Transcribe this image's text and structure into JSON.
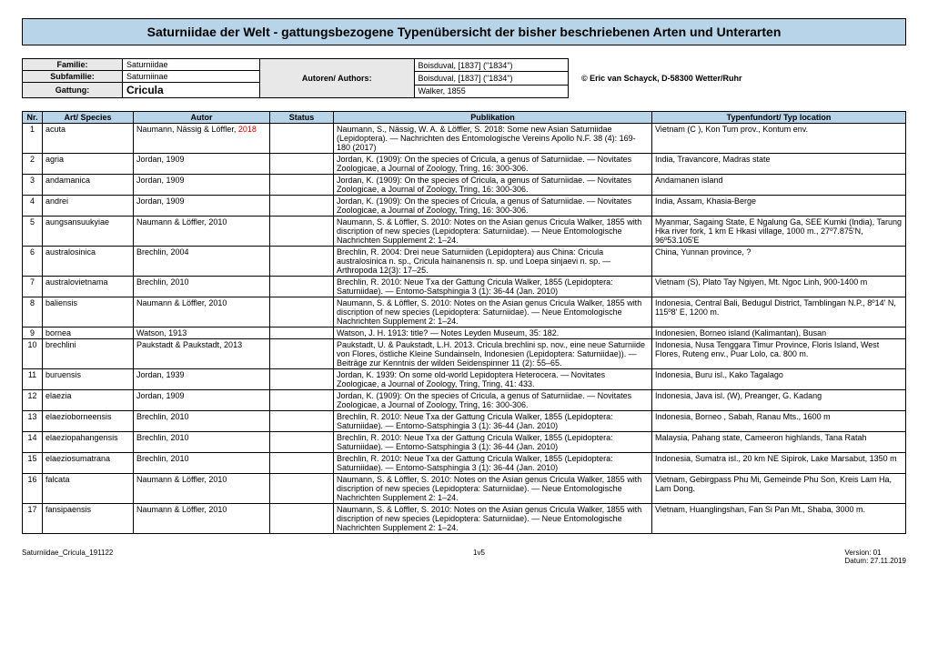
{
  "title": "Saturniidae der Welt - gattungsbezogene Typenübersicht der bisher beschriebenen Arten und Unterarten",
  "meta": {
    "familie_label": "Familie:",
    "familie_val": "Saturniidae",
    "subfamilie_label": "Subfamilie:",
    "subfamilie_val": "Saturniinae",
    "gattung_label": "Gattung:",
    "gattung_val": "Cricula",
    "autoren_label": "Autoren/ Authors:",
    "boisduval1": "Boisduval, [1837] (\"1834\")",
    "boisduval2": "Boisduval, [1837] (\"1834\")",
    "walker": "Walker, 1855",
    "copyright": "© Eric van Schayck, D-58300 Wetter/Ruhr"
  },
  "headers": {
    "nr": "Nr.",
    "species": "Art/ Species",
    "autor": "Autor",
    "status": "Status",
    "pub": "Publikation",
    "loc": "Typenfundort/ Typ location"
  },
  "rows": [
    {
      "nr": "1",
      "sp": "acuta",
      "au_pre": "Naumann, Nässig & Löffler, ",
      "au_red": "2018",
      "st": "",
      "pub": "Naumann, S., Nässig, W. A. & Löffler, S. 2018: Some new Asian Saturniidae (Lepidoptera). — Nachrichten des Entomologische Vereins Apollo N.F. 38 (4): 169-180 (2017)",
      "loc": "Vietnam (C ), Kon Tum prov., Kontum env."
    },
    {
      "nr": "2",
      "sp": "agria",
      "au": "Jordan, 1909",
      "st": "",
      "pub": "Jordan, K. (1909): On the species of Cricula, a genus of Saturniidae. — Novitates Zoologicae, a Journal of Zoology, Tring, 16: 300-306.",
      "loc": "India, Travancore, Madras state"
    },
    {
      "nr": "3",
      "sp": "andamanica",
      "au": "Jordan, 1909",
      "st": "",
      "pub": "Jordan, K. (1909): On the species of Cricula, a genus of Saturniidae. — Novitates Zoologicae, a Journal of Zoology, Tring, 16: 300-306.",
      "loc": "Andamanen island"
    },
    {
      "nr": "4",
      "sp": "andrei",
      "au": "Jordan, 1909",
      "st": "",
      "pub": "Jordan, K. (1909): On the species of Cricula, a genus of Saturniidae. — Novitates Zoologicae, a Journal of Zoology, Tring, 16: 300-306.",
      "loc": "India, Assam, Khasia-Berge"
    },
    {
      "nr": "5",
      "sp": "aungsansuukyiae",
      "au": "Naumann & Löffler, 2010",
      "st": "",
      "pub": "Naumann, S. & Löffler, S. 2010: Notes on the Asian genus Cricula Walker, 1855 with discription of new species (Lepidoptera: Saturniidae). — Neue Entomologische Nachrichten Supplement 2: 1–24.",
      "loc": "Myanmar, Sagaing State, E Ngalung Ga, SEE Kumki (India), Tarung Hka river fork, 1 km E Hkasi village, 1000 m., 27º7.875'N, 96º53.105'E"
    },
    {
      "nr": "6",
      "sp": "australosinica",
      "au": "Brechlin, 2004",
      "st": "",
      "pub": "Brechlin, R. 2004: Drei neue Saturniiden (Lepidoptera) aus China: Cricula australosinica n. sp., Cricula hainanensis n. sp. und Loepa sinjaevi n. sp. — Arthropoda 12(3): 17–25.",
      "loc": "China, Yunnan province, ?"
    },
    {
      "nr": "7",
      "sp": "australovietnama",
      "au": "Brechlin, 2010",
      "st": "",
      "pub": "Brechlin, R. 2010: Neue Txa der Gattung Cricula Walker, 1855 (Lepidoptera: Saturniidae). — Entomo-Satsphingia 3 (1): 36-44 (Jan. 2010)",
      "loc": "Vietnam (S), Plato Tay Ngiyen, Mt. Ngoc Linh, 900-1400 m"
    },
    {
      "nr": "8",
      "sp": "baliensis",
      "au": "Naumann & Löffler, 2010",
      "st": "",
      "pub": "Naumann, S. & Löffler, S. 2010: Notes on the Asian genus Cricula Walker, 1855 with discription of new species (Lepidoptera: Saturniidae). — Neue Entomologische Nachrichten Supplement 2: 1–24.",
      "loc": "Indonesia, Central Bali, Bedugul District, Tamblingan N.P., 8º14' N, 115º8' E, 1200 m."
    },
    {
      "nr": "9",
      "sp": "bornea",
      "au": "Watson, 1913",
      "st": "",
      "pub": "Watson, J. H. 1913: title? — Notes Leyden Museum, 35: 182.",
      "loc": "Indonesien, Borneo island (Kalimantan), Busan"
    },
    {
      "nr": "10",
      "sp": "brechlini",
      "au": "Paukstadt & Paukstadt, 2013",
      "st": "",
      "pub": "Paukstadt, U. & Paukstadt, L.H. 2013. Cricula brechlini sp. nov., eine neue Saturniide von Flores, östliche Kleine Sundainseln, Indonesien (Lepidoptera: Saturniidae)). — Beiträge zur Kenntnis der wilden Seidenspinner 11 (2): 55–65.",
      "loc": "Indonesia, Nusa Tenggara Timur Province, Floris Island, West Flores, Ruteng env., Puar Lolo, ca. 800 m."
    },
    {
      "nr": "11",
      "sp": "buruensis",
      "au": "Jordan, 1939",
      "st": "",
      "pub": "Jordan, K. 1939: On some old-world Lepidoptera Heterocera. — Novitates Zoologicae, a Journal of Zoology, Tring, Tring, 41: 433.",
      "loc": "Indonesia, Buru isl., Kako Tagalago"
    },
    {
      "nr": "12",
      "sp": "elaezia",
      "au": "Jordan, 1909",
      "st": "",
      "pub": "Jordan, K. (1909): On the species of Cricula, a genus of Saturniidae. — Novitates Zoologicae, a Journal of Zoology, Tring, 16: 300-306.",
      "loc": "Indonesia, Java isl. (W), Preanger, G. Kadang"
    },
    {
      "nr": "13",
      "sp": "elaezioborneensis",
      "au": "Brechlin, 2010",
      "st": "",
      "pub": "Brechlin, R. 2010: Neue Txa der Gattung Cricula Walker, 1855 (Lepidoptera: Saturniidae). — Entomo-Satsphingia 3 (1): 36-44 (Jan. 2010)",
      "loc": "Indonesia, Borneo , Sabah, Ranau Mts., 1600 m"
    },
    {
      "nr": "14",
      "sp": "elaeziopahangensis",
      "au": "Brechlin, 2010",
      "st": "",
      "pub": "Brechlin, R. 2010: Neue Txa der Gattung Cricula Walker, 1855 (Lepidoptera: Saturniidae). — Entomo-Satsphingia 3 (1): 36-44 (Jan. 2010)",
      "loc": "Malaysia, Pahang state, Cameeron highlands, Tana Ratah"
    },
    {
      "nr": "15",
      "sp": "elaeziosumatrana",
      "au": "Brechlin, 2010",
      "st": "",
      "pub": "Brechlin, R. 2010: Neue Txa der Gattung Cricula Walker, 1855 (Lepidoptera: Saturniidae). — Entomo-Satsphingia 3 (1): 36-44 (Jan. 2010)",
      "loc": "Indonesia, Sumatra isl., 20 km NE Sipirok, Lake Marsabut, 1350 m"
    },
    {
      "nr": "16",
      "sp": "falcata",
      "au": "Naumann & Löffler, 2010",
      "st": "",
      "pub": "Naumann, S. & Löffler, S. 2010: Notes on the Asian genus Cricula Walker, 1855 with discription of new species (Lepidoptera: Saturniidae). — Neue Entomologische Nachrichten Supplement 2: 1–24.",
      "loc": "Vietnam, Gebirgpass Phu Mi, Gemeinde Phu Son, Kreis Lam Ha, Lam Dong."
    },
    {
      "nr": "17",
      "sp": "fansipaensis",
      "au": "Naumann & Löffler, 2010",
      "st": "",
      "pub": "Naumann, S. & Löffler, S. 2010: Notes on the Asian genus Cricula Walker, 1855 with discription of new species (Lepidoptera: Saturniidae). — Neue Entomologische Nachrichten Supplement 2: 1–24.",
      "loc": "Vietnam, Huanglingshan, Fan Si Pan Mt., Shaba, 3000 m."
    }
  ],
  "footer": {
    "left": "Saturniidae_Cricula_191122",
    "center": "1v5",
    "right1": "Version: 01",
    "right2": "Datum: 27.11.2019"
  }
}
